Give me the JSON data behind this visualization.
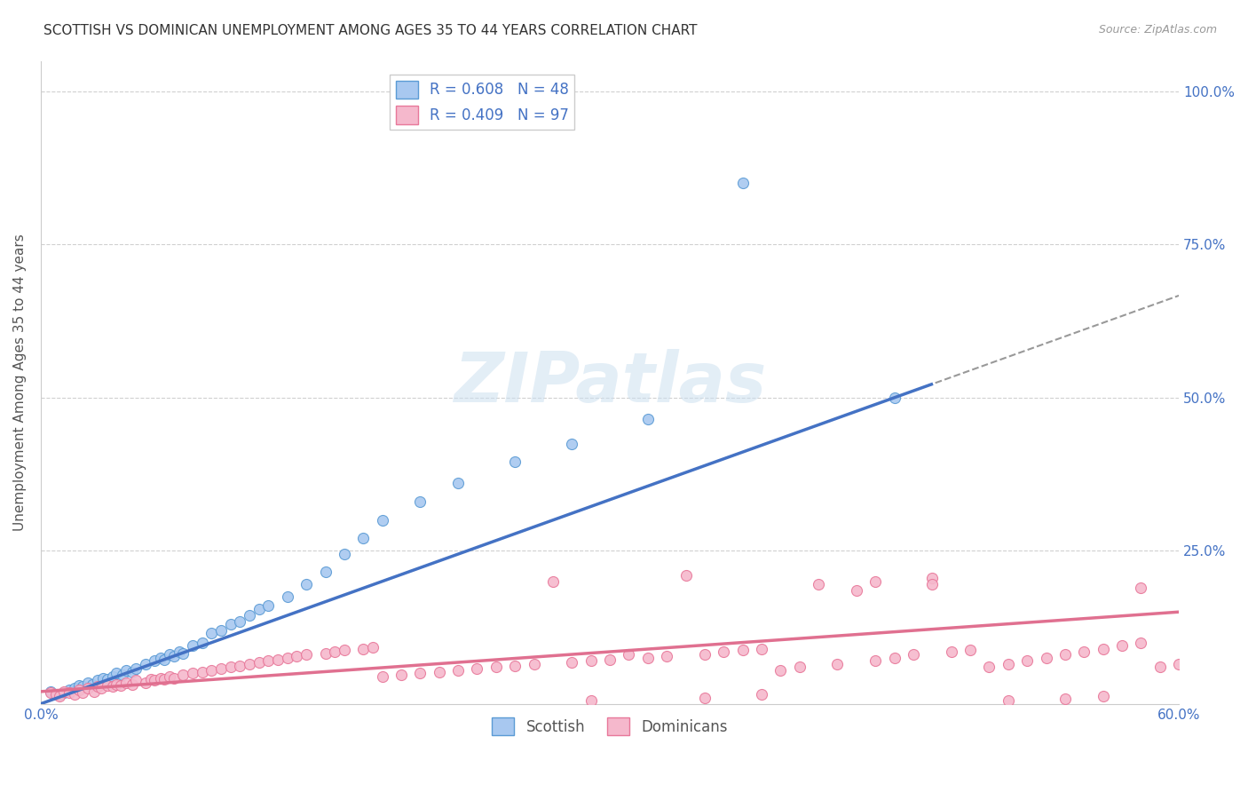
{
  "title": "SCOTTISH VS DOMINICAN UNEMPLOYMENT AMONG AGES 35 TO 44 YEARS CORRELATION CHART",
  "source": "Source: ZipAtlas.com",
  "ylabel": "Unemployment Among Ages 35 to 44 years",
  "xlim": [
    0.0,
    0.6
  ],
  "ylim": [
    0.0,
    1.05
  ],
  "ytick_positions": [
    0.0,
    0.25,
    0.5,
    0.75,
    1.0
  ],
  "yticklabels": [
    "",
    "25.0%",
    "50.0%",
    "75.0%",
    "100.0%"
  ],
  "xtick_positions": [
    0.0,
    0.6
  ],
  "xticklabels": [
    "0.0%",
    "60.0%"
  ],
  "legend_line1": "R = 0.608   N = 48",
  "legend_line2": "R = 0.409   N = 97",
  "scottish_color": "#A8C8F0",
  "dominican_color": "#F5B8CC",
  "scottish_edge_color": "#5B9BD5",
  "dominican_edge_color": "#E8789A",
  "scottish_line_color": "#4472C4",
  "dominican_line_color": "#E07090",
  "watermark": "ZIPatlas",
  "scottish_x": [
    0.005,
    0.01,
    0.012,
    0.015,
    0.018,
    0.02,
    0.022,
    0.025,
    0.027,
    0.03,
    0.033,
    0.035,
    0.038,
    0.04,
    0.043,
    0.045,
    0.048,
    0.05,
    0.055,
    0.06,
    0.063,
    0.065,
    0.068,
    0.07,
    0.073,
    0.075,
    0.08,
    0.085,
    0.09,
    0.095,
    0.1,
    0.105,
    0.11,
    0.115,
    0.12,
    0.13,
    0.14,
    0.15,
    0.16,
    0.17,
    0.18,
    0.2,
    0.22,
    0.25,
    0.28,
    0.32,
    0.37,
    0.45
  ],
  "scottish_y": [
    0.02,
    0.015,
    0.018,
    0.022,
    0.025,
    0.03,
    0.028,
    0.035,
    0.032,
    0.038,
    0.042,
    0.04,
    0.045,
    0.05,
    0.048,
    0.055,
    0.052,
    0.058,
    0.065,
    0.07,
    0.075,
    0.072,
    0.08,
    0.078,
    0.085,
    0.082,
    0.095,
    0.1,
    0.115,
    0.12,
    0.13,
    0.135,
    0.145,
    0.155,
    0.16,
    0.175,
    0.195,
    0.215,
    0.245,
    0.27,
    0.3,
    0.33,
    0.36,
    0.395,
    0.425,
    0.465,
    0.85,
    0.5
  ],
  "dominican_x": [
    0.005,
    0.008,
    0.01,
    0.012,
    0.015,
    0.018,
    0.02,
    0.022,
    0.025,
    0.028,
    0.03,
    0.032,
    0.035,
    0.038,
    0.04,
    0.042,
    0.045,
    0.048,
    0.05,
    0.055,
    0.058,
    0.06,
    0.063,
    0.065,
    0.068,
    0.07,
    0.075,
    0.08,
    0.085,
    0.09,
    0.095,
    0.1,
    0.105,
    0.11,
    0.115,
    0.12,
    0.125,
    0.13,
    0.135,
    0.14,
    0.15,
    0.155,
    0.16,
    0.17,
    0.175,
    0.18,
    0.19,
    0.2,
    0.21,
    0.22,
    0.23,
    0.24,
    0.25,
    0.26,
    0.28,
    0.29,
    0.3,
    0.32,
    0.33,
    0.35,
    0.36,
    0.37,
    0.38,
    0.39,
    0.4,
    0.42,
    0.44,
    0.45,
    0.46,
    0.48,
    0.49,
    0.5,
    0.51,
    0.52,
    0.53,
    0.54,
    0.55,
    0.56,
    0.57,
    0.58,
    0.59,
    0.6,
    0.27,
    0.31,
    0.34,
    0.41,
    0.43,
    0.47,
    0.29,
    0.35,
    0.38,
    0.51,
    0.54,
    0.56,
    0.44,
    0.47,
    0.58
  ],
  "dominican_y": [
    0.018,
    0.015,
    0.012,
    0.02,
    0.018,
    0.015,
    0.022,
    0.018,
    0.025,
    0.02,
    0.028,
    0.025,
    0.03,
    0.028,
    0.032,
    0.03,
    0.035,
    0.032,
    0.038,
    0.035,
    0.04,
    0.038,
    0.042,
    0.04,
    0.045,
    0.042,
    0.048,
    0.05,
    0.052,
    0.055,
    0.058,
    0.06,
    0.062,
    0.065,
    0.068,
    0.07,
    0.072,
    0.075,
    0.078,
    0.08,
    0.082,
    0.085,
    0.088,
    0.09,
    0.092,
    0.045,
    0.048,
    0.05,
    0.052,
    0.055,
    0.058,
    0.06,
    0.062,
    0.065,
    0.068,
    0.07,
    0.072,
    0.075,
    0.078,
    0.08,
    0.085,
    0.088,
    0.09,
    0.055,
    0.06,
    0.065,
    0.07,
    0.075,
    0.08,
    0.085,
    0.088,
    0.06,
    0.065,
    0.07,
    0.075,
    0.08,
    0.085,
    0.09,
    0.095,
    0.1,
    0.06,
    0.065,
    0.2,
    0.08,
    0.21,
    0.195,
    0.185,
    0.205,
    0.005,
    0.01,
    0.015,
    0.005,
    0.008,
    0.012,
    0.2,
    0.195,
    0.19
  ]
}
